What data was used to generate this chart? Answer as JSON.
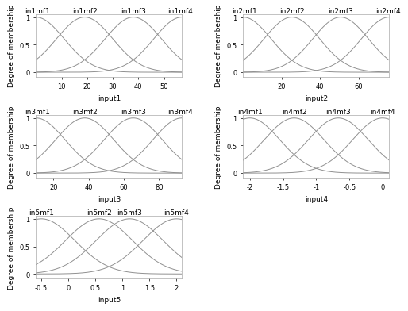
{
  "subplots": [
    {
      "input_name": "input1",
      "xlabel": "input1",
      "mf_labels": [
        "in1mf1",
        "in1mf2",
        "in1mf3",
        "in1mf4"
      ],
      "xlim": [
        0,
        57
      ],
      "xticks": [
        10,
        20,
        30,
        40,
        50
      ],
      "xticklabels": [
        "10",
        "20",
        "30",
        "40",
        "50"
      ],
      "ylim": [
        -0.08,
        1.05
      ],
      "yticks": [
        0,
        0.5,
        1
      ],
      "yticklabels": [
        "0",
        "0.5",
        "1"
      ],
      "centers": [
        0,
        19,
        38,
        57
      ],
      "sigma": 11.0
    },
    {
      "input_name": "input2",
      "xlabel": "input2",
      "mf_labels": [
        "in2mf1",
        "in2mf2",
        "in2mf3",
        "in2mf4"
      ],
      "xlim": [
        0,
        76
      ],
      "xticks": [
        20,
        40,
        60
      ],
      "xticklabels": [
        "20",
        "40",
        "60"
      ],
      "ylim": [
        -0.08,
        1.05
      ],
      "yticks": [
        0,
        0.5,
        1
      ],
      "yticklabels": [
        "0",
        "0.5",
        "1"
      ],
      "centers": [
        0,
        25.3,
        50.7,
        76
      ],
      "sigma": 14.5
    },
    {
      "input_name": "input3",
      "xlabel": "input3",
      "mf_labels": [
        "in3mf1",
        "in3mf2",
        "in3mf3",
        "in3mf4"
      ],
      "xlim": [
        10,
        93
      ],
      "xticks": [
        20,
        40,
        60,
        80
      ],
      "xticklabels": [
        "20",
        "40",
        "60",
        "80"
      ],
      "ylim": [
        -0.08,
        1.05
      ],
      "yticks": [
        0,
        0.5,
        1
      ],
      "yticklabels": [
        "0",
        "0.5",
        "1"
      ],
      "centers": [
        10,
        37.7,
        65.3,
        93
      ],
      "sigma": 16.5
    },
    {
      "input_name": "input4",
      "xlabel": "input4",
      "mf_labels": [
        "in4mf1",
        "in4mf2",
        "in4mf3",
        "in4mf4"
      ],
      "xlim": [
        -2.1,
        0.1
      ],
      "xticks": [
        -2,
        -1.5,
        -1,
        -0.5,
        0
      ],
      "xticklabels": [
        "-2",
        "-1.5",
        "-1",
        "-0.5",
        "0"
      ],
      "ylim": [
        -0.08,
        1.05
      ],
      "yticks": [
        0,
        0.5,
        1
      ],
      "yticklabels": [
        "0",
        "0.5",
        "1"
      ],
      "centers": [
        -2.0,
        -1.333,
        -0.667,
        0.0
      ],
      "sigma": 0.45
    },
    {
      "input_name": "input5",
      "xlabel": "input5",
      "mf_labels": [
        "in5mf1",
        "in5mf2",
        "in5mf3",
        "in5mf4"
      ],
      "xlim": [
        -0.6,
        2.1
      ],
      "xticks": [
        -0.5,
        0,
        0.5,
        1,
        1.5,
        2
      ],
      "xticklabels": [
        "-0.5",
        "0",
        "0.5",
        "1",
        "1.5",
        "2"
      ],
      "ylim": [
        -0.08,
        1.05
      ],
      "yticks": [
        0,
        0.5,
        1
      ],
      "yticklabels": [
        "0",
        "0.5",
        "1"
      ],
      "centers": [
        -0.5,
        0.567,
        1.133,
        2.0
      ],
      "sigma": 0.62
    }
  ],
  "line_color": "#909090",
  "bg_color": "#ffffff",
  "ylabel": "Degree of membership",
  "label_fontsize": 6.5,
  "tick_fontsize": 6,
  "mf_fontsize": 6.5
}
